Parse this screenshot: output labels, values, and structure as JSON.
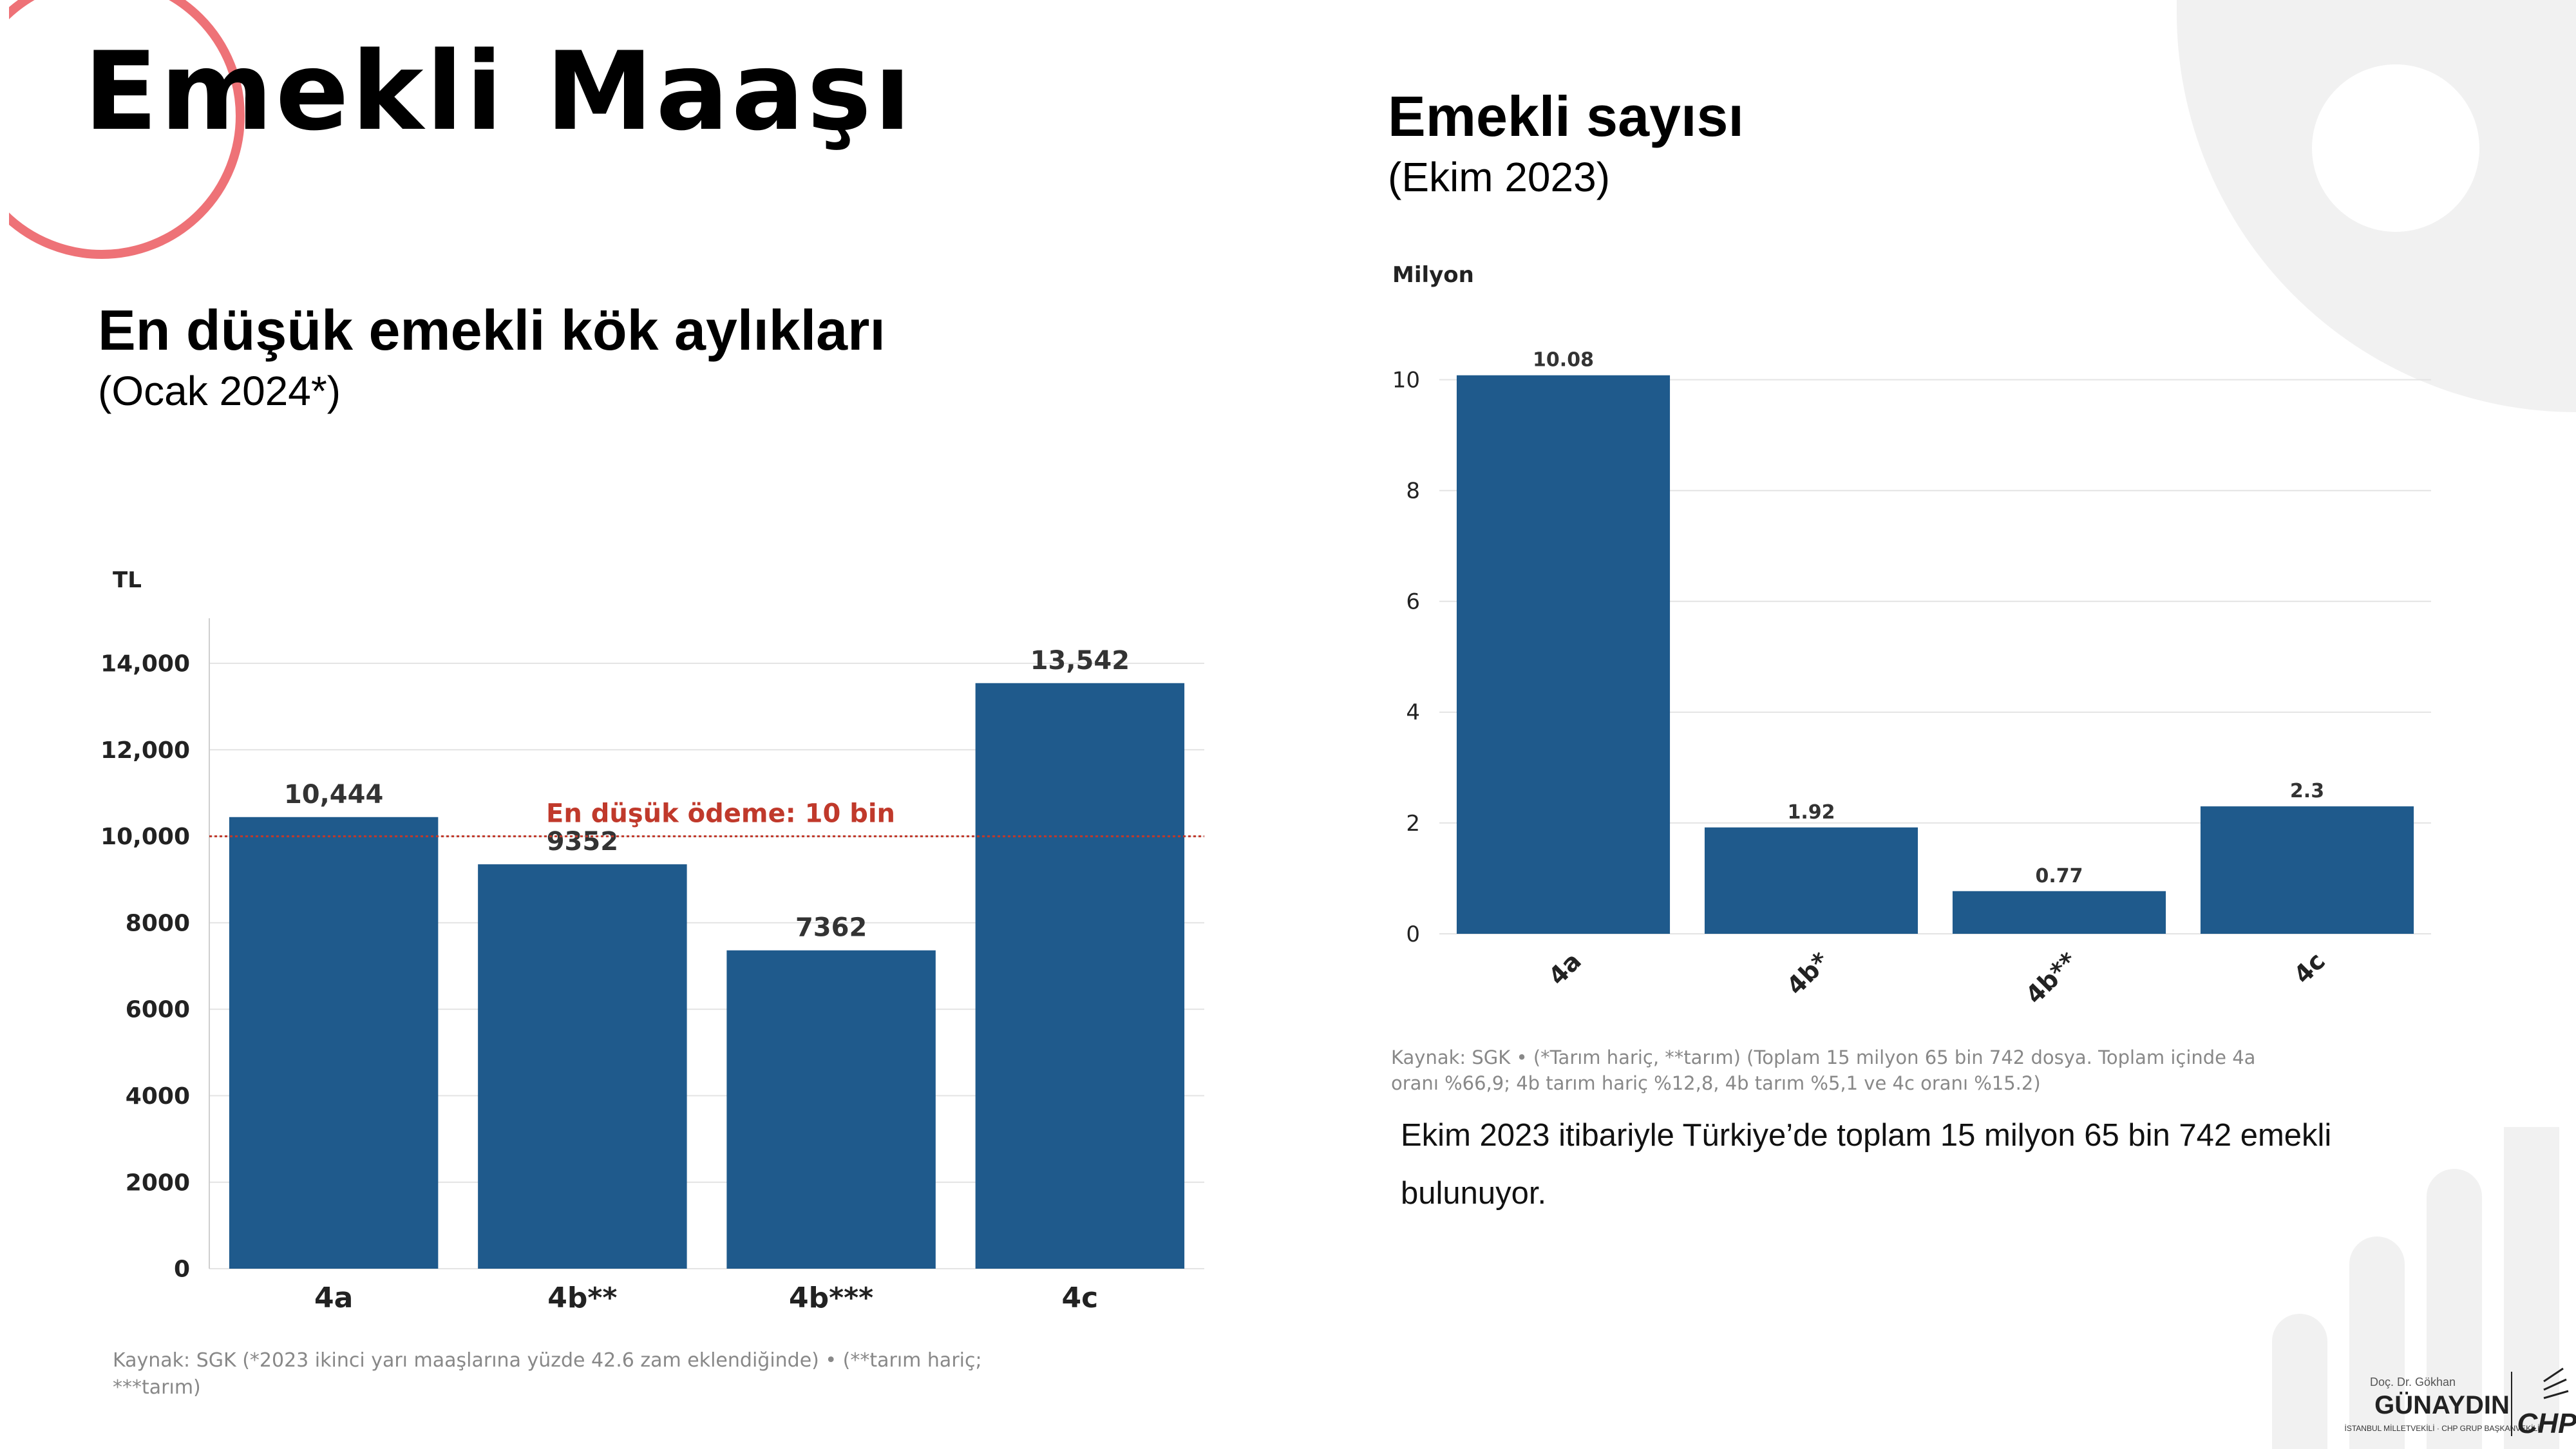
{
  "page": {
    "title": "Emekli Maaşı",
    "left_heading": "En düşük emekli kök aylıkları",
    "left_note": "(Ocak 2024*)",
    "right_heading": "Emekli sayısı",
    "right_note": "(Ekim 2023)",
    "paragraph": "Ekim 2023 itibariyle Türkiye’de toplam 15 milyon 65 bin 742 emekli bulunuyor."
  },
  "colors": {
    "bar": "#1f5a8c",
    "accent_circle": "#ee7277",
    "decor_gray": "#f1f1f1",
    "ref_line": "#c0392b"
  },
  "logo": {
    "name_top": "Doç. Dr. Gökhan",
    "name": "GÜNAYDIN",
    "subtitle": "İSTANBUL MİLLETVEKİLİ · CHP GRUP BAŞKANVEKİLİ",
    "party": "CHP"
  },
  "chart_data": [
    {
      "type": "bar",
      "title": "En düşük emekli kök aylıkları",
      "subtitle": "(Ocak 2024*)",
      "ylabel": "TL",
      "xlabel": "",
      "categories": [
        "4a",
        "4b**",
        "4b***",
        "4c"
      ],
      "values": [
        10444,
        9352,
        7362,
        13542
      ],
      "value_labels": [
        "10,444",
        "9352",
        "7362",
        "13,542"
      ],
      "ylim": [
        0,
        14000
      ],
      "yticks": [
        0,
        2000,
        4000,
        6000,
        8000,
        10000,
        12000,
        14000
      ],
      "ytick_labels": [
        "0",
        "2000",
        "4000",
        "6000",
        "8000",
        "10,000",
        "12,000",
        "14,000"
      ],
      "reference_line": {
        "value": 10000,
        "label": "En düşük ödeme: 10 bin"
      },
      "grid": true,
      "source_lines": [
        "Kaynak: SGK (*2023 ikinci yarı maaşlarına yüzde 42.6 zam eklendiğinde) • (**tarım hariç;",
        "***tarım)"
      ]
    },
    {
      "type": "bar",
      "title": "Emekli sayısı",
      "subtitle": "(Ekim 2023)",
      "ylabel": "Milyon",
      "xlabel": "",
      "categories": [
        "4a",
        "4b*",
        "4b**",
        "4c"
      ],
      "values": [
        10.08,
        1.92,
        0.77,
        2.3
      ],
      "value_labels": [
        "10.08",
        "1.92",
        "0.77",
        "2.3"
      ],
      "ylim": [
        0,
        10.6
      ],
      "yticks": [
        0,
        2,
        4,
        6,
        8,
        10
      ],
      "ytick_labels": [
        "0",
        "2",
        "4",
        "6",
        "8",
        "10"
      ],
      "grid": true,
      "source_lines": [
        "Kaynak: SGK • (*Tarım hariç, **tarım) (Toplam 15 milyon 65 bin 742 dosya. Toplam içinde 4a",
        "oranı %66,9; 4b tarım hariç %12,8, 4b tarım %5,1 ve 4c oranı %15.2)"
      ]
    }
  ]
}
